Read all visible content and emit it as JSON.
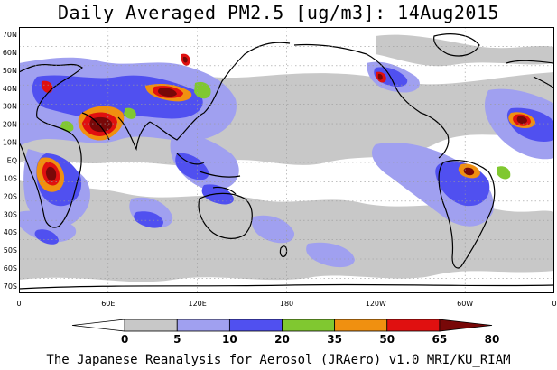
{
  "title": "Daily Averaged PM2.5 [ug/m3]: 14Aug2015",
  "lat_labels": [
    "70N",
    "60N",
    "50N",
    "40N",
    "30N",
    "20N",
    "10N",
    "EQ",
    "10S",
    "20S",
    "30S",
    "40S",
    "50S",
    "60S",
    "70S"
  ],
  "lon_labels": [
    "0",
    "60E",
    "120E",
    "180",
    "120W",
    "60W",
    "0"
  ],
  "colorbar": {
    "levels": [
      "0",
      "5",
      "10",
      "20",
      "35",
      "50",
      "65",
      "80"
    ],
    "colors": [
      "#ffffff",
      "#c8c8c8",
      "#a0a0f0",
      "#5050f0",
      "#80c830",
      "#f09010",
      "#e01010",
      "#780808"
    ]
  },
  "credit": "The Japanese Reanalysis for Aerosol (JRAero) v1.0 MRI/KU_RIAM",
  "colors": {
    "land_outline": "#000000",
    "grid": "#9a9a9a",
    "background": "#ffffff"
  }
}
